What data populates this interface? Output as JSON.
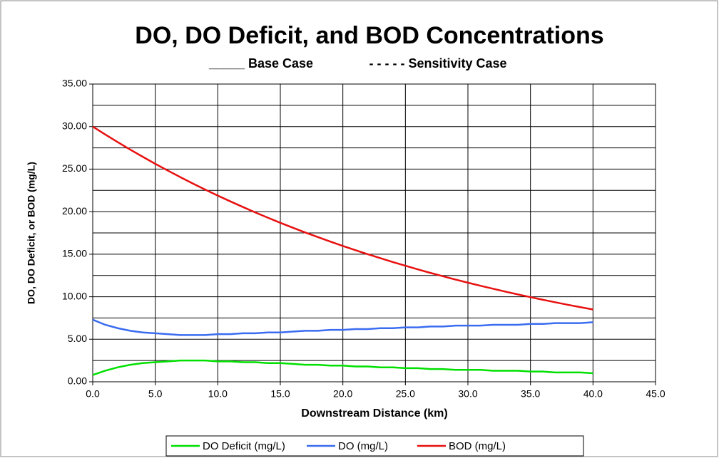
{
  "chart_data": {
    "type": "line",
    "title": "DO, DO Deficit, and BOD Concentrations",
    "subtitle": [
      "_____ Base Case",
      "- - - - - Sensitivity Case"
    ],
    "xlabel": "Downstream Distance (km)",
    "ylabel": "DO, DO Deficit, or BOD (mg/L)",
    "x": [
      0,
      1,
      2,
      3,
      4,
      5,
      6,
      7,
      8,
      9,
      10,
      11,
      12,
      13,
      14,
      15,
      16,
      17,
      18,
      19,
      20,
      21,
      22,
      23,
      24,
      25,
      26,
      27,
      28,
      29,
      30,
      31,
      32,
      33,
      34,
      35,
      36,
      37,
      38,
      39,
      40
    ],
    "series": [
      {
        "name": "DO Deficit (mg/L)",
        "color": "#00e000",
        "values": [
          0.8,
          1.3,
          1.7,
          2.0,
          2.2,
          2.3,
          2.4,
          2.5,
          2.5,
          2.5,
          2.4,
          2.4,
          2.3,
          2.3,
          2.2,
          2.2,
          2.1,
          2.0,
          2.0,
          1.9,
          1.9,
          1.8,
          1.8,
          1.7,
          1.7,
          1.6,
          1.6,
          1.5,
          1.5,
          1.4,
          1.4,
          1.4,
          1.3,
          1.3,
          1.3,
          1.2,
          1.2,
          1.1,
          1.1,
          1.1,
          1.0
        ]
      },
      {
        "name": "DO (mg/L)",
        "color": "#3a6cf0",
        "values": [
          7.3,
          6.7,
          6.3,
          6.0,
          5.8,
          5.7,
          5.6,
          5.5,
          5.5,
          5.5,
          5.6,
          5.6,
          5.7,
          5.7,
          5.8,
          5.8,
          5.9,
          6.0,
          6.0,
          6.1,
          6.1,
          6.2,
          6.2,
          6.3,
          6.3,
          6.4,
          6.4,
          6.5,
          6.5,
          6.6,
          6.6,
          6.6,
          6.7,
          6.7,
          6.7,
          6.8,
          6.8,
          6.9,
          6.9,
          6.9,
          7.0
        ]
      },
      {
        "name": "BOD (mg/L)",
        "color": "#e81010",
        "values": [
          30.0,
          29.07,
          28.17,
          27.29,
          26.45,
          25.62,
          24.83,
          24.06,
          23.31,
          22.59,
          21.89,
          21.21,
          20.55,
          19.91,
          19.29,
          18.69,
          18.11,
          17.55,
          17.01,
          16.48,
          15.97,
          15.47,
          14.99,
          14.53,
          14.07,
          13.64,
          13.21,
          12.8,
          12.41,
          12.02,
          11.65,
          11.29,
          10.94,
          10.6,
          10.27,
          9.95,
          9.64,
          9.34,
          9.05,
          8.77,
          8.5
        ]
      }
    ],
    "xlim": [
      0,
      45
    ],
    "xticks": [
      {
        "value": 0,
        "label": "0.0"
      },
      {
        "value": 5,
        "label": "5.0"
      },
      {
        "value": 10,
        "label": "10.0"
      },
      {
        "value": 15,
        "label": "15.0"
      },
      {
        "value": 20,
        "label": "20.0"
      },
      {
        "value": 25,
        "label": "25.0"
      },
      {
        "value": 30,
        "label": "30.0"
      },
      {
        "value": 35,
        "label": "35.0"
      },
      {
        "value": 40,
        "label": "40.0"
      },
      {
        "value": 45,
        "label": "45.0"
      }
    ],
    "ylim": [
      0,
      35
    ],
    "yticks": [
      {
        "value": 0,
        "label": "0.00"
      },
      {
        "value": 5,
        "label": "5.00"
      },
      {
        "value": 10,
        "label": "10.00"
      },
      {
        "value": 15,
        "label": "15.00"
      },
      {
        "value": 20,
        "label": "20.00"
      },
      {
        "value": 25,
        "label": "25.00"
      },
      {
        "value": 30,
        "label": "30.00"
      },
      {
        "value": 35,
        "label": "35.00"
      }
    ],
    "y_minor_grid": [
      2.5,
      7.5,
      12.5,
      17.5,
      22.5,
      27.5,
      32.5
    ],
    "grid": true,
    "legend": "bottom"
  }
}
